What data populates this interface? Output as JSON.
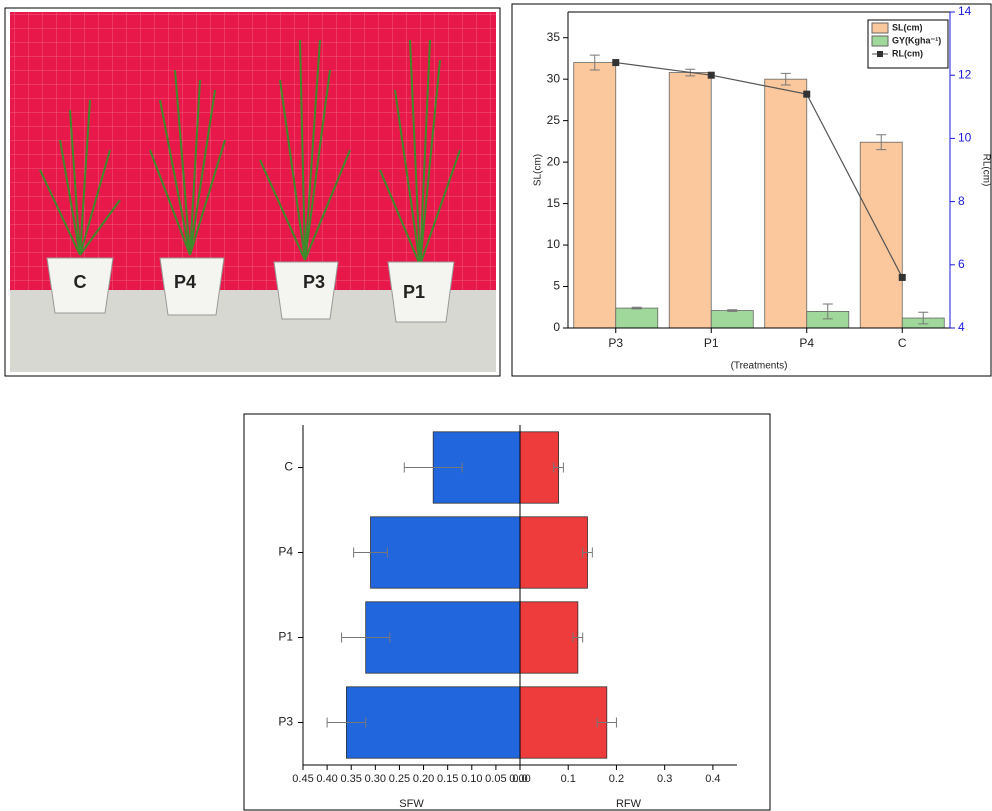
{
  "photo": {
    "labels": [
      "C",
      "P4",
      "P3",
      "P1"
    ]
  },
  "chart_data": [
    {
      "type": "bar",
      "categories": [
        "P3",
        "P1",
        "P4",
        "C"
      ],
      "x_label": "(Treatments)",
      "y_label": "SL(cm)",
      "y2_label": "RL(cm)",
      "ylim": [
        0,
        38.1
      ],
      "yticks": [
        0,
        5,
        10,
        15,
        20,
        25,
        30,
        35
      ],
      "y2lim": [
        4,
        14
      ],
      "y2ticks": [
        4,
        6,
        8,
        10,
        12,
        14
      ],
      "legend": "upper right",
      "series": [
        {
          "name": "SL(cm)",
          "color": "#fbc79c",
          "values": [
            32,
            30.8,
            30,
            22.4
          ],
          "errors": [
            0.9,
            0.4,
            0.7,
            0.9
          ]
        },
        {
          "name": "GY(Kgha⁻¹)",
          "color": "#9fd89a",
          "values": [
            2.4,
            2.1,
            2.0,
            1.2
          ],
          "errors": [
            0.1,
            0.1,
            0.9,
            0.7
          ]
        },
        {
          "name": "RL(cm)",
          "type": "line",
          "axis": "y2",
          "color": "#555555",
          "values": [
            12.4,
            12.0,
            11.4,
            5.6
          ]
        }
      ]
    },
    {
      "type": "butterfly",
      "categories": [
        "P3",
        "P1",
        "P4",
        "C"
      ],
      "xlim_left": [
        0.45,
        0
      ],
      "xticks_left": [
        {
          "value": 0.45,
          "label": "0.45"
        },
        {
          "value": 0.4,
          "label": "0.40"
        },
        {
          "value": 0.35,
          "label": "0.35"
        },
        {
          "value": 0.3,
          "label": "0.30"
        },
        {
          "value": 0.25,
          "label": "0.25"
        },
        {
          "value": 0.2,
          "label": "0.20"
        },
        {
          "value": 0.15,
          "label": "0.15"
        },
        {
          "value": 0.1,
          "label": "0.10"
        },
        {
          "value": 0.05,
          "label": "0.05"
        },
        {
          "value": 0,
          "label": "0.00"
        }
      ],
      "xlim_right": [
        0,
        0.45
      ],
      "xticks_right": [
        {
          "value": 0,
          "label": "0.0"
        },
        0.1,
        0.2,
        0.3,
        0.4
      ],
      "series": [
        {
          "name": "SFW",
          "side": "left",
          "color": "#2266dd",
          "values": [
            0.36,
            0.32,
            0.31,
            0.18
          ],
          "errors": [
            0.04,
            0.05,
            0.035,
            0.06
          ]
        },
        {
          "name": "RFW",
          "side": "right",
          "color": "#ee3b3b",
          "values": [
            0.18,
            0.12,
            0.14,
            0.08
          ],
          "errors": [
            0.02,
            0.01,
            0.01,
            0.01
          ]
        }
      ]
    }
  ]
}
